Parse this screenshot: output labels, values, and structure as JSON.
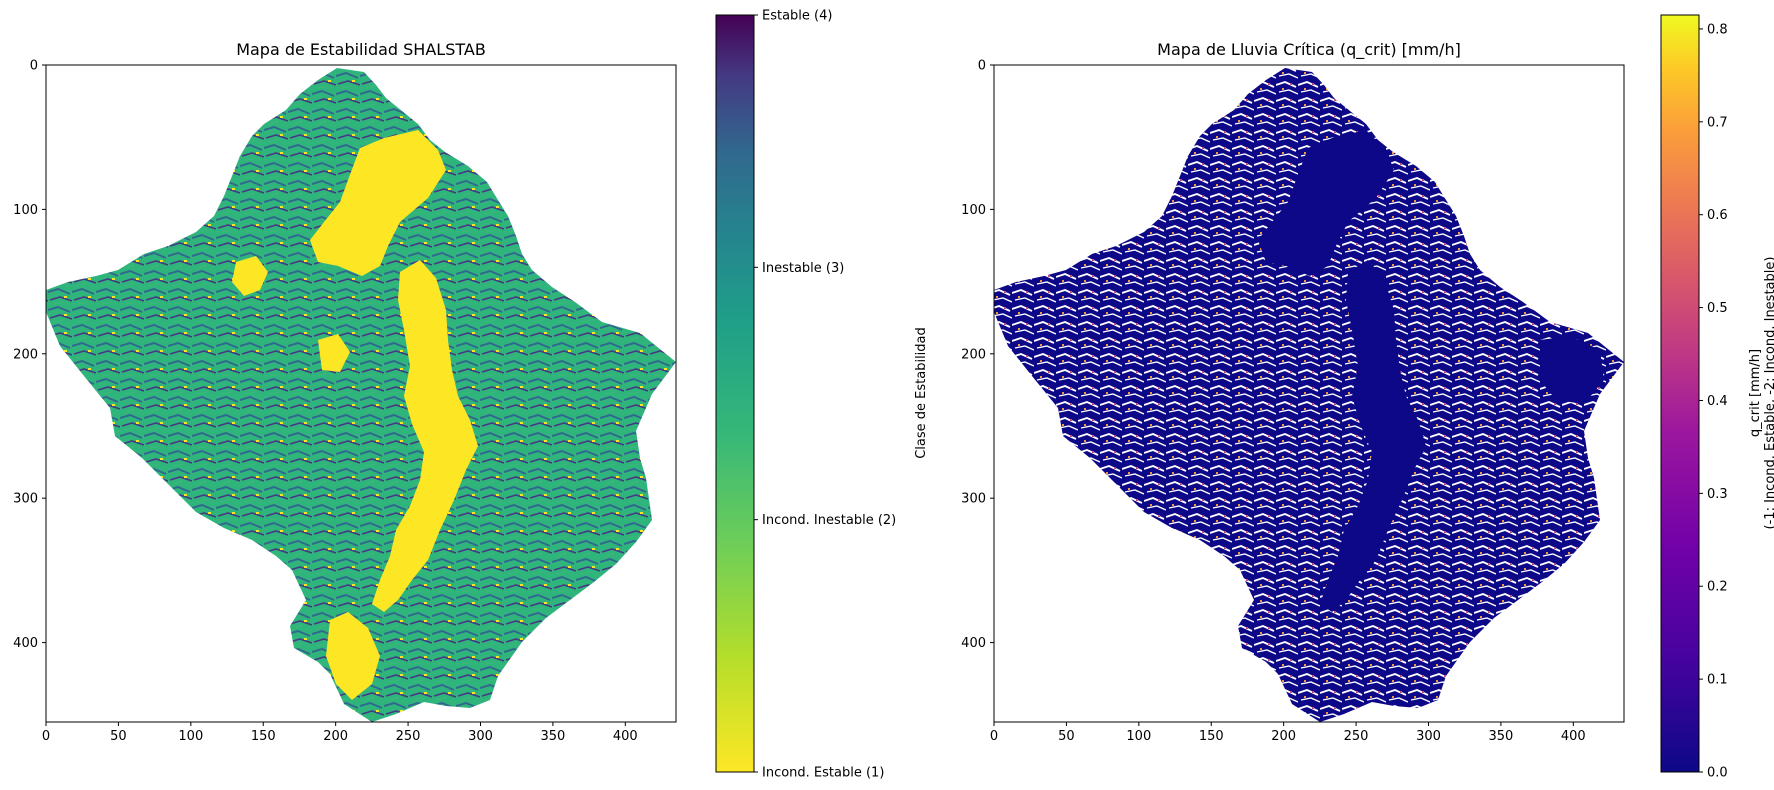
{
  "chart_data": [
    {
      "type": "heatmap",
      "title": "Mapa de Estabilidad SHALSTAB",
      "xlabel": "",
      "ylabel": "",
      "xlim": [
        0,
        435
      ],
      "ylim": [
        455,
        0
      ],
      "x_ticks": [
        0,
        50,
        100,
        150,
        200,
        250,
        300,
        350,
        400
      ],
      "y_ticks": [
        0,
        100,
        200,
        300,
        400
      ],
      "colormap": "viridis_r",
      "colorbar": {
        "label": "Clase de Estabilidad",
        "range": [
          1,
          4
        ],
        "ticks": [
          {
            "value": 4,
            "label": "Estable (4)"
          },
          {
            "value": 3,
            "label": "Inestable (3)"
          },
          {
            "value": 2,
            "label": "Incond. Inestable (2)"
          },
          {
            "value": 1,
            "label": "Incond. Estable (1)"
          }
        ]
      },
      "class_colors": {
        "1": "#fde725",
        "2": "#2fb47c",
        "3": "#31688e",
        "4": "#440154"
      }
    },
    {
      "type": "heatmap",
      "title": "Mapa de Lluvia Crítica (q_crit) [mm/h]",
      "xlabel": "",
      "ylabel": "",
      "xlim": [
        0,
        435
      ],
      "ylim": [
        455,
        0
      ],
      "x_ticks": [
        0,
        50,
        100,
        150,
        200,
        250,
        300,
        350,
        400
      ],
      "y_ticks": [
        0,
        100,
        200,
        300,
        400
      ],
      "colormap": "plasma",
      "colorbar": {
        "label_line1": "q_crit [mm/h]",
        "label_line2": "(-1: Incond. Estable, -2: Incond. Inestable)",
        "range": [
          0,
          0.815
        ],
        "ticks": [
          0.0,
          0.1,
          0.2,
          0.3,
          0.4,
          0.5,
          0.6,
          0.7,
          0.8
        ],
        "tick_labels": [
          "0.0",
          "0.1",
          "0.2",
          "0.3",
          "0.4",
          "0.5",
          "0.6",
          "0.7",
          "0.8"
        ]
      },
      "colors": {
        "low": "#0d0887",
        "mid_low": "#7e03a8",
        "mid": "#cc4778",
        "mid_high": "#f89540",
        "high": "#f0f921"
      }
    }
  ]
}
